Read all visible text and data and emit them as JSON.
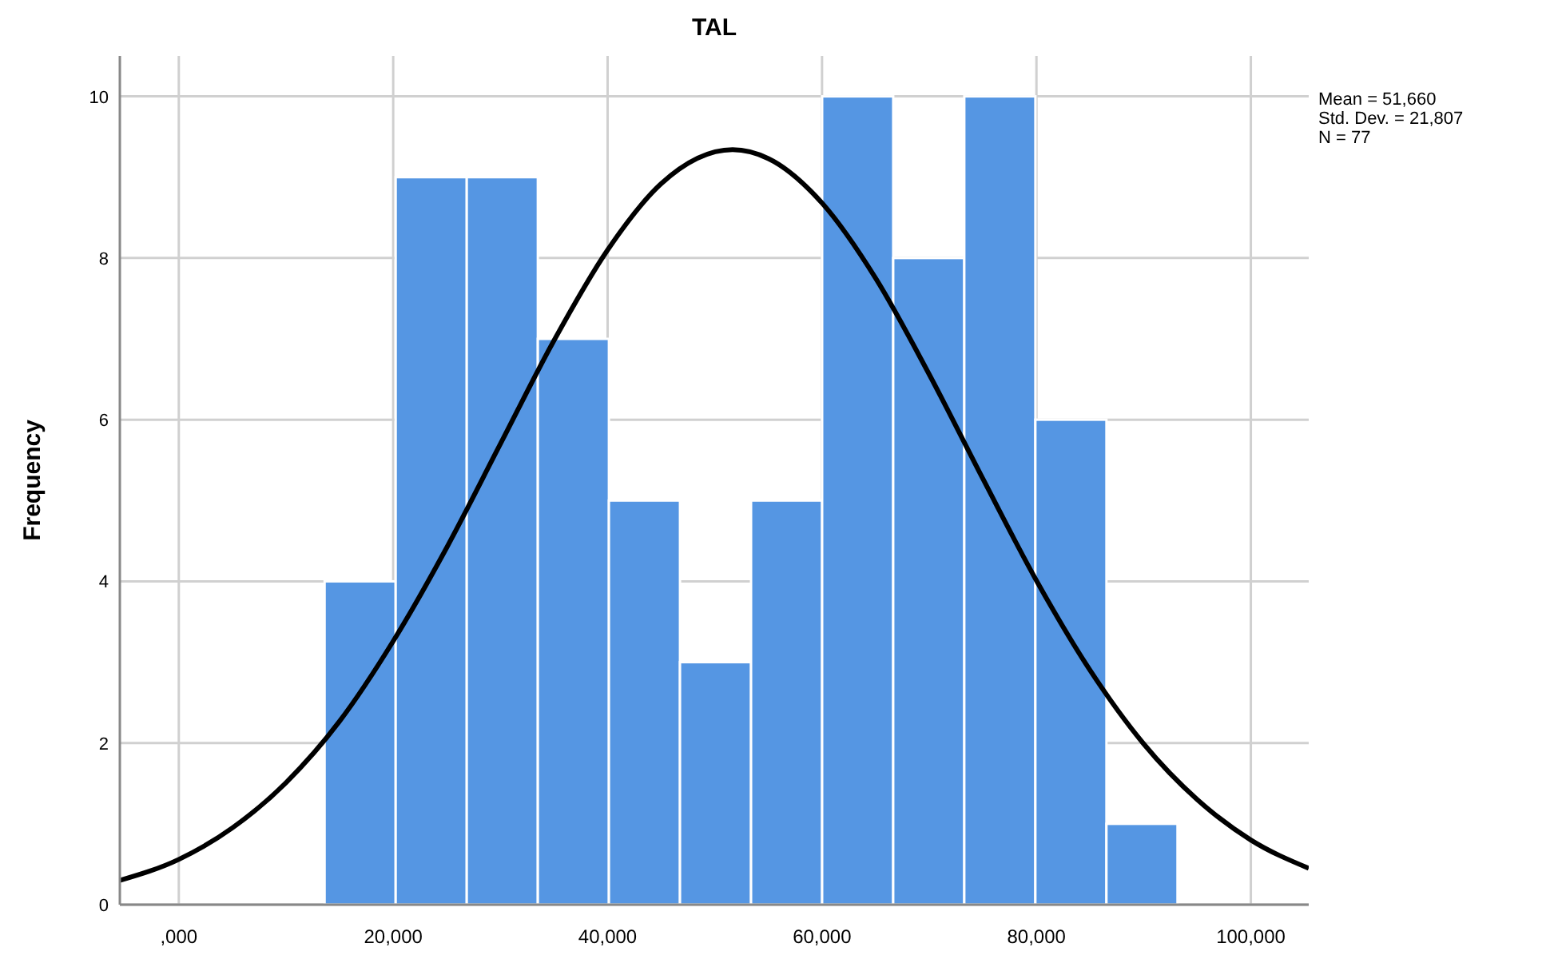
{
  "chart_data": {
    "type": "histogram",
    "title": "TAL",
    "ylabel": "Frequency",
    "annotations": [
      "Mean = 51,660",
      "Std. Dev. = 21,807",
      "N = 77"
    ],
    "series": [
      {
        "color": "#5596e3",
        "bins": [
          13600,
          20230,
          26860,
          33490,
          40120,
          46750,
          53380,
          60010,
          66640,
          73270,
          79900,
          86530,
          93160
        ],
        "values": [
          4,
          9,
          9,
          7,
          5,
          3,
          5,
          10,
          8,
          10,
          6,
          1
        ]
      },
      {
        "type": "line",
        "color": "#000000",
        "x": [
          -5500,
          0,
          5000,
          10000,
          15000,
          20000,
          25000,
          30000,
          35000,
          40000,
          45000,
          51660,
          55000,
          60000,
          65000,
          70000,
          75000,
          80000,
          85000,
          90000,
          95000,
          100000,
          105400
        ],
        "values": [
          0.3,
          0.56,
          0.95,
          1.51,
          2.27,
          3.26,
          4.42,
          5.7,
          6.98,
          8.1,
          8.92,
          9.34,
          9.23,
          8.68,
          7.75,
          6.56,
          5.27,
          4.01,
          2.9,
          1.99,
          1.3,
          0.8,
          0.45
        ]
      }
    ],
    "xlim": [
      -5500,
      105400
    ],
    "xticks": [
      {
        "value": 0,
        "label": ",000"
      },
      {
        "value": 20000,
        "label": "20,000"
      },
      {
        "value": 40000,
        "label": "40,000"
      },
      {
        "value": 60000,
        "label": "60,000"
      },
      {
        "value": 80000,
        "label": "80,000"
      },
      {
        "value": 100000,
        "label": "100,000"
      }
    ],
    "ylim": [
      0,
      10.5
    ],
    "yticks": [
      0,
      2,
      4,
      6,
      8,
      10
    ],
    "grid": true,
    "line_style": "solid",
    "marker": "none"
  }
}
